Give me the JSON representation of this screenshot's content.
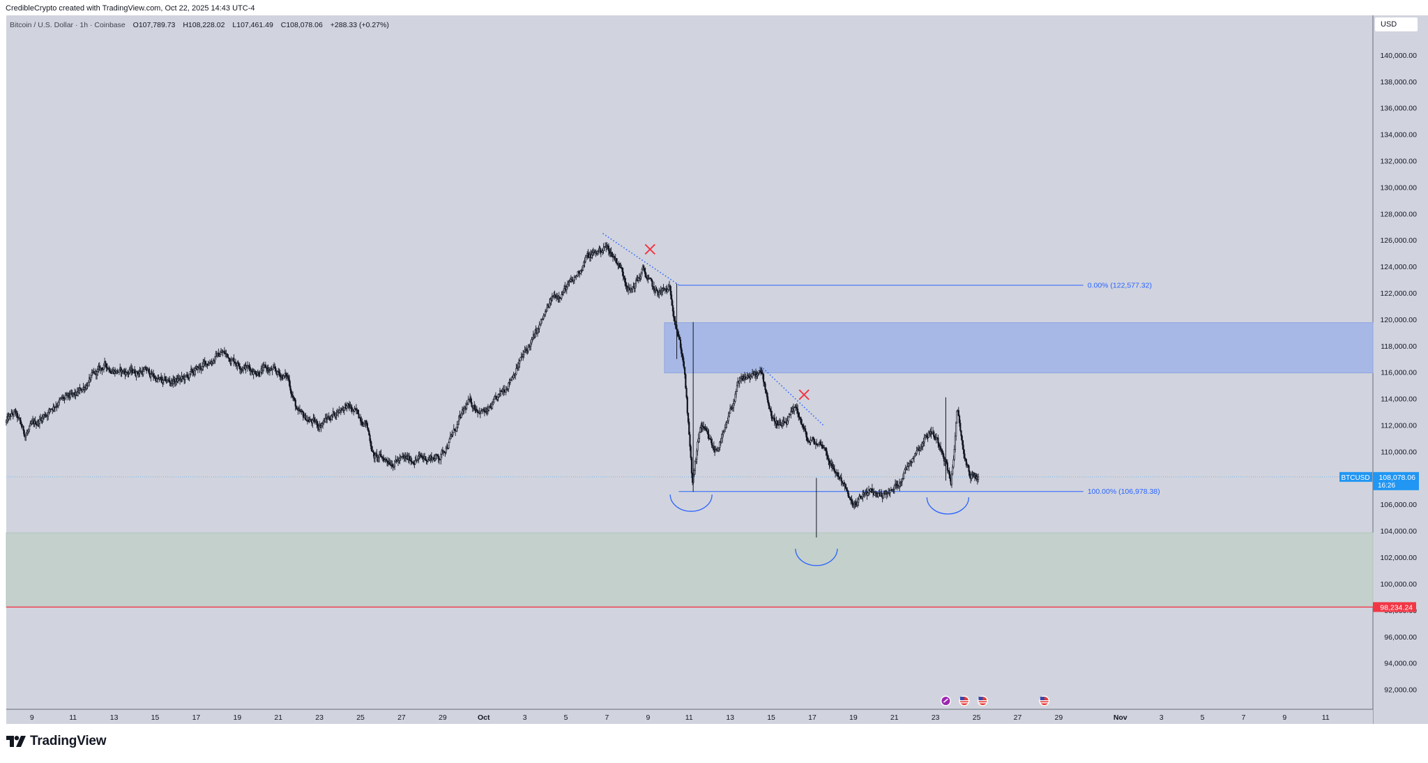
{
  "header": {
    "creator_line": "CredibleCrypto created with TradingView.com, Oct 22, 2025 14:43 UTC-4"
  },
  "legend": {
    "symbol": "Bitcoin / U.S. Dollar · 1h · Coinbase",
    "open_label": "O",
    "open": "107,789.73",
    "high_label": "H",
    "high": "108,228.02",
    "low_label": "L",
    "low": "107,461.49",
    "close_label": "C",
    "close": "108,078.06",
    "change": "+288.33 (+0.27%)"
  },
  "currency_button": "USD",
  "brand": {
    "name": "TradingView"
  },
  "colors": {
    "chart_bg": "#d1d4de",
    "candle": "#131722",
    "fib_line": "#2962ff",
    "resistance_zone": "#a7b8e6",
    "support_zone": "#c3d0cb",
    "red_line": "#f23645",
    "last_price_bg": "#2196f3",
    "x_mark": "#f23645"
  },
  "chart_data": {
    "type": "candlestick",
    "symbol": "BTCUSD",
    "interval": "1h",
    "ylim": [
      90500,
      143000
    ],
    "y_ticks": [
      "140,000.00",
      "138,000.00",
      "136,000.00",
      "134,000.00",
      "132,000.00",
      "130,000.00",
      "128,000.00",
      "126,000.00",
      "124,000.00",
      "122,000.00",
      "120,000.00",
      "118,000.00",
      "116,000.00",
      "114,000.00",
      "112,000.00",
      "110,000.00",
      "108,000.00",
      "106,000.00",
      "104,000.00",
      "102,000.00",
      "100,000.00",
      "98,000.00",
      "96,000.00",
      "94,000.00",
      "92,000.00"
    ],
    "y_tick_values": [
      140000,
      138000,
      136000,
      134000,
      132000,
      130000,
      128000,
      126000,
      124000,
      122000,
      120000,
      118000,
      116000,
      114000,
      112000,
      110000,
      108000,
      106000,
      104000,
      102000,
      100000,
      98000,
      96000,
      94000,
      92000
    ],
    "x_ticks": [
      "9",
      "11",
      "13",
      "15",
      "17",
      "19",
      "21",
      "23",
      "25",
      "27",
      "29",
      "Oct",
      "3",
      "5",
      "7",
      "9",
      "11",
      "13",
      "15",
      "17",
      "19",
      "21",
      "23",
      "25",
      "27",
      "29",
      "Nov",
      "3",
      "5",
      "7",
      "9",
      "11"
    ],
    "x_tick_days": [
      9,
      11,
      13,
      15,
      17,
      19,
      21,
      23,
      25,
      27,
      29,
      31,
      33,
      35,
      37,
      39,
      41,
      43,
      45,
      47,
      49,
      51,
      53,
      55,
      57,
      59,
      62,
      64,
      66,
      68,
      70,
      72
    ],
    "x_day_range": [
      7.75,
      74.3
    ],
    "price_path": [
      [
        7.75,
        112200
      ],
      [
        8.2,
        112900
      ],
      [
        8.7,
        111300
      ],
      [
        9.6,
        112700
      ],
      [
        10.3,
        113800
      ],
      [
        11.2,
        114200
      ],
      [
        11.9,
        115500
      ],
      [
        12.6,
        116500
      ],
      [
        13.4,
        116000
      ],
      [
        14.6,
        116100
      ],
      [
        15.4,
        115200
      ],
      [
        16.5,
        115500
      ],
      [
        17.2,
        116300
      ],
      [
        18.3,
        117500
      ],
      [
        19.2,
        116600
      ],
      [
        19.9,
        116100
      ],
      [
        20.5,
        116200
      ],
      [
        21.5,
        115600
      ],
      [
        22.0,
        112800
      ],
      [
        23.0,
        112000
      ],
      [
        24.3,
        113500
      ],
      [
        25.3,
        112300
      ],
      [
        25.7,
        109600
      ],
      [
        26.6,
        109300
      ],
      [
        28.1,
        109500
      ],
      [
        28.9,
        109600
      ],
      [
        29.5,
        111200
      ],
      [
        30.3,
        113700
      ],
      [
        31.2,
        112900
      ],
      [
        31.8,
        114100
      ],
      [
        32.8,
        116800
      ],
      [
        33.6,
        118900
      ],
      [
        34.4,
        121600
      ],
      [
        35.4,
        122800
      ],
      [
        36.0,
        124600
      ],
      [
        37.0,
        125500
      ],
      [
        37.6,
        124300
      ],
      [
        38.2,
        122100
      ],
      [
        38.8,
        123700
      ],
      [
        39.4,
        122000
      ],
      [
        40.1,
        122200
      ],
      [
        40.4,
        119800
      ],
      [
        40.8,
        116500
      ],
      [
        41.2,
        107500
      ],
      [
        41.6,
        112000
      ],
      [
        42.3,
        110000
      ],
      [
        42.8,
        111500
      ],
      [
        43.4,
        114900
      ],
      [
        43.9,
        115700
      ],
      [
        44.6,
        115800
      ],
      [
        45.1,
        112500
      ],
      [
        45.6,
        111800
      ],
      [
        46.3,
        113200
      ],
      [
        46.8,
        110800
      ],
      [
        47.6,
        110500
      ],
      [
        48.0,
        108800
      ],
      [
        48.6,
        107600
      ],
      [
        48.9,
        106000
      ],
      [
        49.2,
        105900
      ],
      [
        49.6,
        106900
      ],
      [
        50.2,
        106800
      ],
      [
        50.9,
        106900
      ],
      [
        51.4,
        108100
      ],
      [
        52.0,
        109900
      ],
      [
        52.8,
        111600
      ],
      [
        53.4,
        110200
      ],
      [
        53.8,
        107600
      ],
      [
        54.1,
        113000
      ],
      [
        54.4,
        110000
      ],
      [
        54.7,
        108200
      ],
      [
        55.1,
        108000
      ]
    ],
    "last_price": 108078.06,
    "last_price_label": "108,078.06",
    "countdown": "16:26",
    "fib_levels": [
      {
        "label": "0.00% (122,577.32)",
        "price": 122577.32
      },
      {
        "label": "100.00% (106,978.38)",
        "price": 106978.38
      }
    ],
    "resistance_zone": {
      "from": 115950,
      "to": 119750
    },
    "support_zone": {
      "from": 98234.24,
      "to": 103850
    },
    "red_level": {
      "price": 98234.24,
      "label": "98,234.24"
    },
    "annotations": [
      {
        "type": "trendline",
        "from": [
          36.8,
          126500
        ],
        "to": [
          40.5,
          122600
        ]
      },
      {
        "type": "trendline",
        "from": [
          44.6,
          116300
        ],
        "to": [
          47.6,
          111900
        ]
      },
      {
        "type": "x_mark",
        "at": [
          39.1,
          125300
        ]
      },
      {
        "type": "x_mark",
        "at": [
          46.6,
          114300
        ]
      },
      {
        "type": "arc",
        "center": [
          41.1,
          106900
        ]
      },
      {
        "type": "arc",
        "center": [
          47.2,
          102800
        ]
      },
      {
        "type": "arc",
        "center": [
          53.6,
          106700
        ]
      }
    ],
    "event_icons_days": [
      53.5,
      54.4,
      55.3,
      58.3
    ]
  }
}
